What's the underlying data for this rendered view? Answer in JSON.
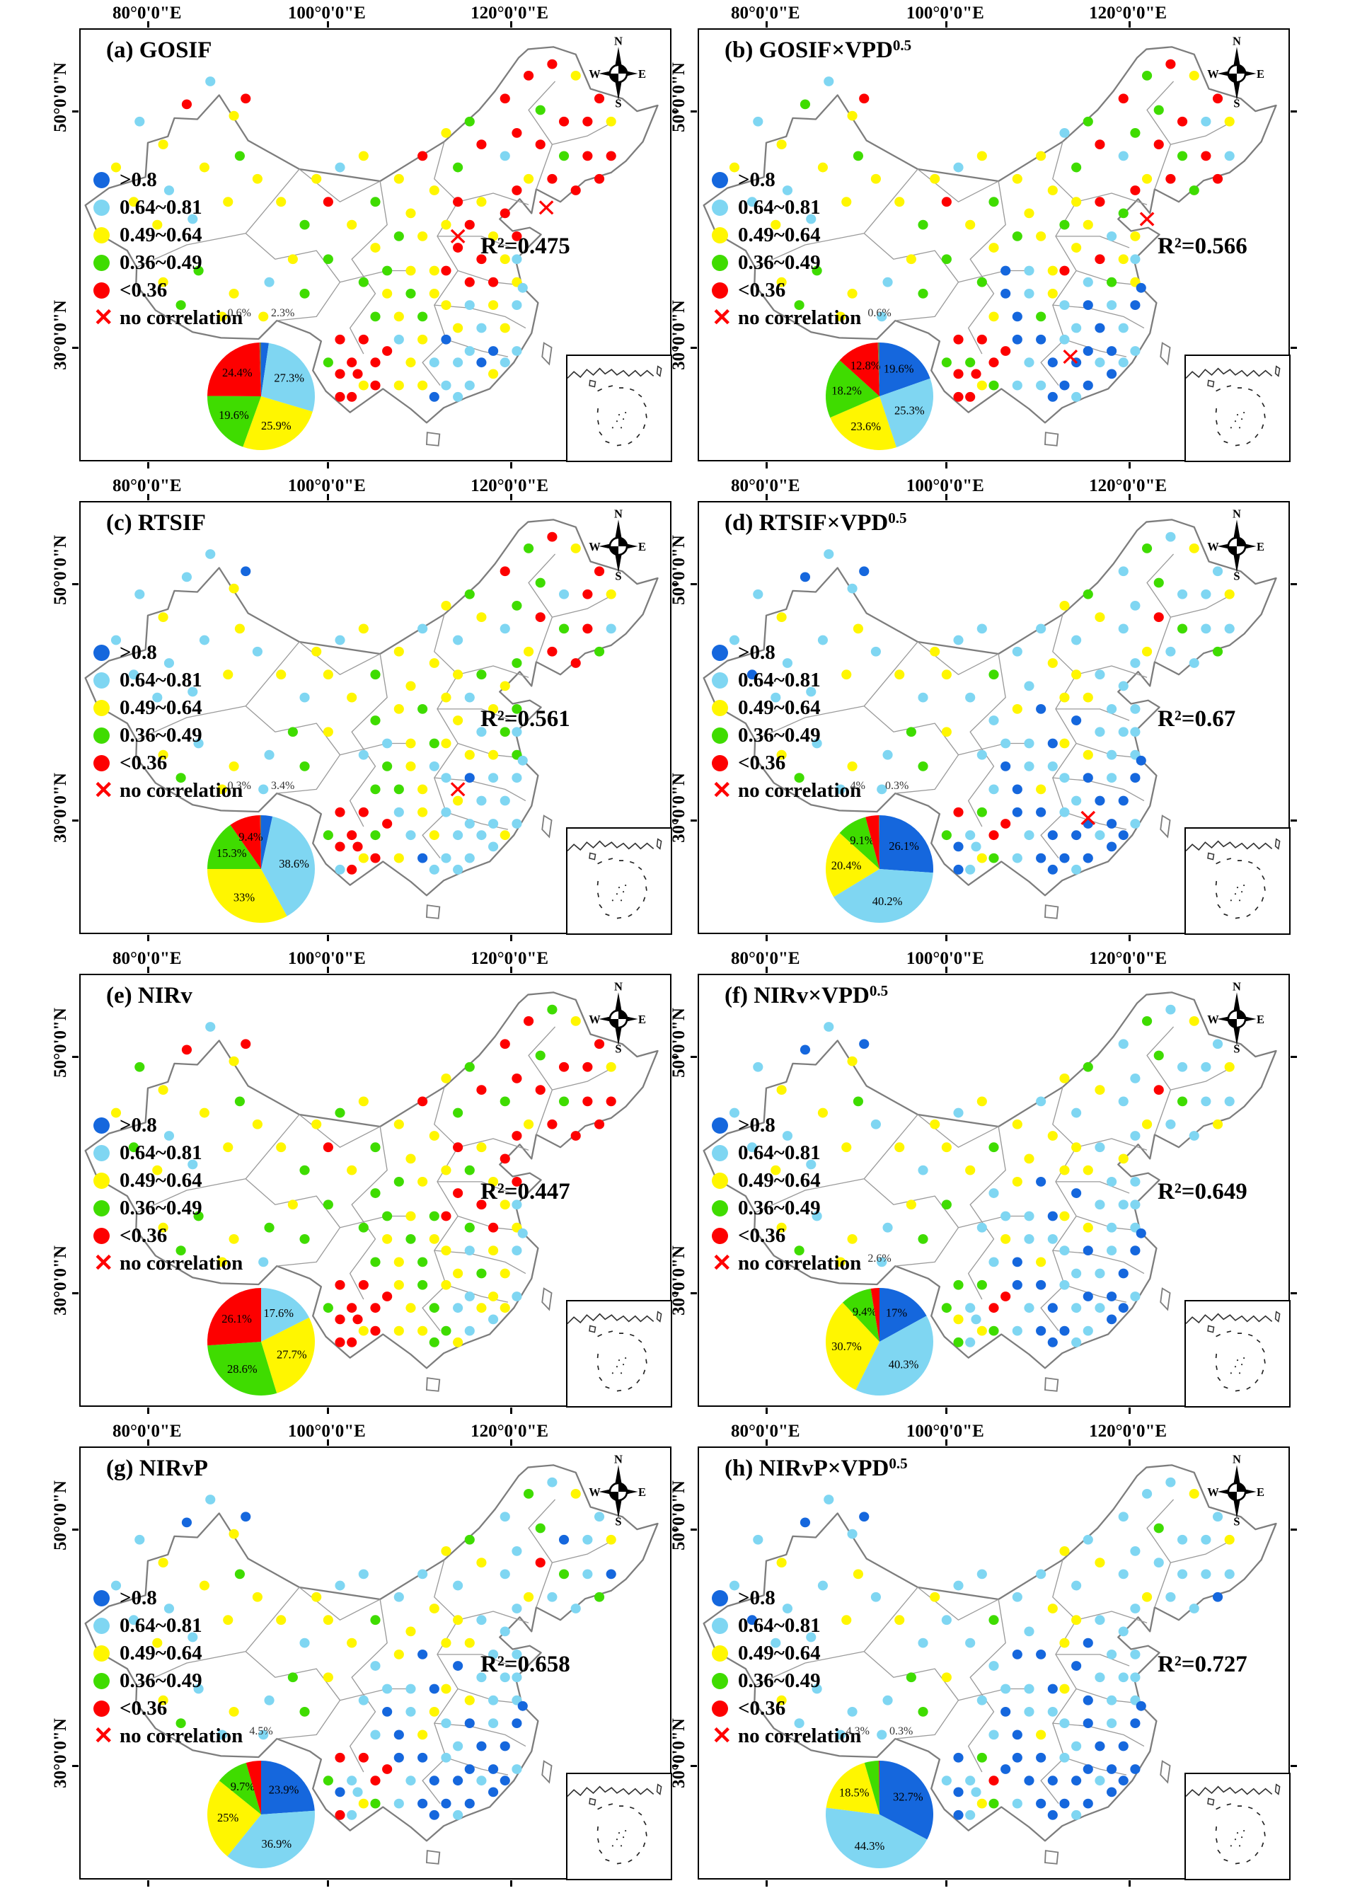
{
  "axis": {
    "top_labels": [
      "80°0'0\"E",
      "100°0'0\"E",
      "120°0'0\"E"
    ],
    "left_labels": [
      "50°0'0\"N",
      "30°0'0\"N"
    ]
  },
  "legend": {
    "items": [
      {
        "key": "B",
        "label": ">0.8"
      },
      {
        "key": "C",
        "label": "0.64~0.81"
      },
      {
        "key": "Y",
        "label": "0.49~0.64"
      },
      {
        "key": "G",
        "label": "0.36~0.49"
      },
      {
        "key": "R",
        "label": "<0.36"
      }
    ],
    "no_corr_label": "no correlation",
    "no_corr_symbol": "✕"
  },
  "colors": {
    "B": "#1567dd",
    "C": "#7fd6f2",
    "Y": "#fff600",
    "G": "#3fdc00",
    "R": "#fd0000",
    "N": "#77774a",
    "x_mark": "#ff0000",
    "outline": "#7d7d7d",
    "province": "#9a9a9a"
  },
  "compass": {
    "n": "N",
    "e": "E",
    "s": "S",
    "w": "W"
  },
  "stations": [
    [
      6,
      24
    ],
    [
      10,
      16
    ],
    [
      14,
      20
    ],
    [
      18,
      13
    ],
    [
      22,
      9
    ],
    [
      26,
      15
    ],
    [
      9,
      30
    ],
    [
      15,
      28
    ],
    [
      21,
      24
    ],
    [
      27,
      22
    ],
    [
      13,
      34
    ],
    [
      19,
      33
    ],
    [
      25,
      30
    ],
    [
      30,
      26
    ],
    [
      28,
      12
    ],
    [
      14,
      44
    ],
    [
      20,
      42
    ],
    [
      26,
      46
    ],
    [
      32,
      44
    ],
    [
      38,
      46
    ],
    [
      24,
      50
    ],
    [
      31,
      50
    ],
    [
      17,
      48
    ],
    [
      34,
      30
    ],
    [
      38,
      34
    ],
    [
      42,
      30
    ],
    [
      46,
      34
    ],
    [
      50,
      30
    ],
    [
      54,
      26
    ],
    [
      58,
      22
    ],
    [
      62,
      18
    ],
    [
      66,
      16
    ],
    [
      56,
      32
    ],
    [
      60,
      28
    ],
    [
      64,
      24
    ],
    [
      68,
      20
    ],
    [
      40,
      26
    ],
    [
      44,
      24
    ],
    [
      48,
      22
    ],
    [
      36,
      40
    ],
    [
      42,
      40
    ],
    [
      72,
      12
    ],
    [
      76,
      8
    ],
    [
      80,
      6
    ],
    [
      84,
      8
    ],
    [
      88,
      12
    ],
    [
      78,
      14
    ],
    [
      82,
      16
    ],
    [
      86,
      16
    ],
    [
      90,
      16
    ],
    [
      74,
      18
    ],
    [
      78,
      20
    ],
    [
      82,
      22
    ],
    [
      86,
      22
    ],
    [
      90,
      22
    ],
    [
      76,
      26
    ],
    [
      80,
      26
    ],
    [
      84,
      28
    ],
    [
      88,
      26
    ],
    [
      72,
      22
    ],
    [
      74,
      28
    ],
    [
      64,
      30
    ],
    [
      68,
      30
    ],
    [
      72,
      32
    ],
    [
      66,
      34
    ],
    [
      70,
      36
    ],
    [
      74,
      36
    ],
    [
      62,
      34
    ],
    [
      64,
      38
    ],
    [
      68,
      40
    ],
    [
      72,
      40
    ],
    [
      66,
      44
    ],
    [
      70,
      44
    ],
    [
      74,
      44
    ],
    [
      62,
      42
    ],
    [
      50,
      38
    ],
    [
      54,
      36
    ],
    [
      58,
      36
    ],
    [
      52,
      42
    ],
    [
      56,
      42
    ],
    [
      60,
      42
    ],
    [
      48,
      44
    ],
    [
      52,
      46
    ],
    [
      56,
      46
    ],
    [
      60,
      46
    ],
    [
      54,
      50
    ],
    [
      58,
      50
    ],
    [
      62,
      48
    ],
    [
      50,
      50
    ],
    [
      74,
      48
    ],
    [
      70,
      48
    ],
    [
      66,
      48
    ],
    [
      72,
      52
    ],
    [
      68,
      52
    ],
    [
      64,
      52
    ],
    [
      74,
      40
    ],
    [
      75,
      45
    ],
    [
      70,
      56
    ],
    [
      74,
      56
    ],
    [
      54,
      54
    ],
    [
      58,
      54
    ],
    [
      62,
      54
    ],
    [
      66,
      56
    ],
    [
      56,
      58
    ],
    [
      60,
      58
    ],
    [
      64,
      58
    ],
    [
      68,
      58
    ],
    [
      58,
      62
    ],
    [
      62,
      62
    ],
    [
      66,
      62
    ],
    [
      54,
      62
    ],
    [
      60,
      64
    ],
    [
      64,
      64
    ],
    [
      70,
      60
    ],
    [
      72,
      58
    ],
    [
      44,
      54
    ],
    [
      48,
      54
    ],
    [
      46,
      58
    ],
    [
      50,
      58
    ],
    [
      44,
      60
    ],
    [
      48,
      62
    ],
    [
      46,
      64
    ],
    [
      50,
      62
    ],
    [
      42,
      58
    ],
    [
      52,
      56
    ],
    [
      47,
      60
    ],
    [
      44,
      64
    ]
  ],
  "panels": [
    {
      "id": "a",
      "title": "(a) GOSIF",
      "title_sup": "",
      "r2": "R²=0.475",
      "pie": {
        "slices": [
          {
            "k": "B",
            "v": 2.3,
            "t": "2.3%"
          },
          {
            "k": "C",
            "v": 27.3,
            "t": "27.3%"
          },
          {
            "k": "Y",
            "v": 25.9,
            "t": "25.9%"
          },
          {
            "k": "G",
            "v": 19.6,
            "t": "19.6%"
          },
          {
            "k": "R",
            "v": 24.4,
            "t": "24.4%"
          },
          {
            "k": "N",
            "v": 0.6,
            "t": "0.6%"
          }
        ],
        "out_labels": [
          "0.6%",
          "2.3%"
        ]
      },
      "x_marks": [
        [
          79,
          31
        ],
        [
          64,
          36
        ]
      ],
      "dots": "YCYRCYYCYGYCYYRYGYCGYYGYGRYGYRYGYYGRYCYYGRRRYRGRRYRRGRRYRRRCRRYRRYRYRRYRRYRYGYGYYGYGYYGYGCYCYCYCCBCCYBCYCCBYCCYBCYCRRRRRYRRGRRR"
    },
    {
      "id": "b",
      "title": "(b) GOSIF×VPD",
      "title_sup": "0.5",
      "r2": "R²=0.566",
      "pie": {
        "slices": [
          {
            "k": "B",
            "v": 19.6,
            "t": "19.6%"
          },
          {
            "k": "C",
            "v": 25.3,
            "t": "25.3%"
          },
          {
            "k": "Y",
            "v": 23.6,
            "t": "23.6%"
          },
          {
            "k": "G",
            "v": 18.2,
            "t": "18.2%"
          },
          {
            "k": "R",
            "v": 12.8,
            "t": "12.8%"
          },
          {
            "k": "N",
            "v": 0.6,
            "t": "0.6%"
          }
        ],
        "out_labels": [
          "0.6%"
        ]
      },
      "x_marks": [
        [
          76,
          33
        ],
        [
          63,
          57
        ]
      ],
      "dots": "YCYGCYCCYGYCYYRYGYCGYCGYGRYGYYCGYYGRYCYYGRGRYRGRCYGRGRCYRGRCRYRGYCYGYRYCGYRYGYBCYGBCYBGCYBCBCBCCBBCBBCBCBBCCBBCBCBCRRGRRYRGGRRR"
    },
    {
      "id": "c",
      "title": "(c) RTSIF",
      "title_sup": "",
      "r2": "R²=0.561",
      "pie": {
        "slices": [
          {
            "k": "B",
            "v": 3.4,
            "t": "3.4%"
          },
          {
            "k": "C",
            "v": 38.6,
            "t": "38.6%"
          },
          {
            "k": "Y",
            "v": 33,
            "t": "33%"
          },
          {
            "k": "G",
            "v": 15.3,
            "t": "15.3%"
          },
          {
            "k": "R",
            "v": 9.4,
            "t": "9.4%"
          },
          {
            "k": "N",
            "v": 0.3,
            "t": "0.3%"
          }
        ],
        "out_labels": [
          "0.3%",
          "3.4%"
        ]
      },
      "x_marks": [
        [
          64,
          50
        ]
      ],
      "dots": "CCYCCYCCCYCCYCBYCYCGYCGYCYYGYCYGYYCYYCYGYRGRYRGCRYGRGRCYRRGCGYGYCYGYYCGYYGYGYGCYGCGYCGYCGCCBCCYCCCCCYCCCYCCBCCYCCCYRRRGRYRRGRRC"
    },
    {
      "id": "d",
      "title": "(d) RTSIF×VPD",
      "title_sup": "0.5",
      "r2": "R²=0.67",
      "pie": {
        "slices": [
          {
            "k": "B",
            "v": 26.1,
            "t": "26.1%"
          },
          {
            "k": "C",
            "v": 40.2,
            "t": "40.2%"
          },
          {
            "k": "Y",
            "v": 20.4,
            "t": "20.4%"
          },
          {
            "k": "G",
            "v": 9.1,
            "t": "9.1%"
          },
          {
            "k": "R",
            "v": 4,
            "t": "4%"
          },
          {
            "k": "N",
            "v": 0.3,
            "t": "0.3%"
          }
        ],
        "out_labels": [
          "4%",
          "0.3%"
        ]
      },
      "x_marks": [
        [
          66,
          55
        ]
      ],
      "dots": "CCYBCCBCCYCCYCBYCYCGCCGYCYCGCCYGCYCYYCCGYCGCYCGCCYCRGCCYCCGCCYCCYCCYBCCYCCYCYBCCBCBCCBYCCBCBBBCCBBCBBCBCBBCBBBCBCBBRGCRBYCGGRCB"
    },
    {
      "id": "e",
      "title": "(e) NIRv",
      "title_sup": "",
      "r2": "R²=0.447",
      "pie": {
        "slices": [
          {
            "k": "C",
            "v": 17.6,
            "t": "17.6%"
          },
          {
            "k": "Y",
            "v": 27.7,
            "t": "27.7%"
          },
          {
            "k": "G",
            "v": 28.6,
            "t": "28.6%"
          },
          {
            "k": "R",
            "v": 26.1,
            "t": "26.1%"
          }
        ],
        "out_labels": []
      },
      "x_marks": [],
      "dots": "YGYRCYGCYGYCYYRYGYGGYCGYGRYGYRYGYYGRYGYYGRRGYRGRRYRRGRRYRRRGRRYRGYRYRRYGRYRGGYGYGGYGYYGYGCYCYGYCCYCYGYCYGCYYGCYGYCYRRRRRYRRGRRR"
    },
    {
      "id": "f",
      "title": "(f) NIRv×VPD",
      "title_sup": "0.5",
      "r2": "R²=0.649",
      "pie": {
        "slices": [
          {
            "k": "B",
            "v": 17,
            "t": "17%"
          },
          {
            "k": "C",
            "v": 40.3,
            "t": "40.3%"
          },
          {
            "k": "Y",
            "v": 30.7,
            "t": "30.7%"
          },
          {
            "k": "G",
            "v": 9.4,
            "t": "9.4%"
          },
          {
            "k": "R",
            "v": 2.6,
            "t": "2.6%"
          }
        ],
        "out_labels": [
          "2.6%"
        ]
      },
      "x_marks": [],
      "dots": "CCYBCYCCYGYCYCBYCYCGYCGYCYYGYCYGYYCYYCYYGCGCYCGCCYCRGCCYCCYCCYCYYCCYBCCYCCYCYBCCBCYCCBYCCBCBBCCCBBCBBCBCBCCBBCCBCBBGGCRYYCGGRCG"
    },
    {
      "id": "g",
      "title": "(g) NIRvP",
      "title_sup": "",
      "r2": "R²=0.658",
      "pie": {
        "slices": [
          {
            "k": "B",
            "v": 23.9,
            "t": "23.9%"
          },
          {
            "k": "C",
            "v": 36.9,
            "t": "36.9%"
          },
          {
            "k": "Y",
            "v": 25,
            "t": "25%"
          },
          {
            "k": "G",
            "v": 9.7,
            "t": "9.7%"
          },
          {
            "k": "R",
            "v": 4.5,
            "t": "4.5%"
          }
        ],
        "out_labels": [
          "4.5%"
        ]
      },
      "x_marks": [],
      "dots": "CCYBCYCCYGYCYYBYCYCGCCGYCYYGCCYGYYCYYCCGYCGCYCGBCYCRGCBYCCGCCYCCYCCYBCCYCCYCYBCCBCBCYBYCCBCBBBCCBBCBBCBCBBCBBBCBCBBRRCRBYCGGRCR"
    },
    {
      "id": "h",
      "title": "(h) NIRvP×VPD",
      "title_sup": "0.5",
      "r2": "R²=0.727",
      "pie": {
        "slices": [
          {
            "k": "B",
            "v": 32.7,
            "t": "32.7%"
          },
          {
            "k": "C",
            "v": 44.3,
            "t": "44.3%"
          },
          {
            "k": "Y",
            "v": 18.5,
            "t": "18.5%"
          },
          {
            "k": "G",
            "v": 4.3,
            "t": "4.3%"
          },
          {
            "k": "R",
            "v": 0.3,
            "t": "0.3%"
          }
        ],
        "out_labels": [
          "4.3%",
          "0.3%"
        ]
      },
      "x_marks": [],
      "dots": "CCYBCCBCCYCCYCBYCCCGCCCYCCCGCCYCCYCYYCCGYCCCYCGCCYCCCCCYCCBCCYCCBCCYBCCBCCYCBBCCBCBCCBYCCBCBBBCCBBBBBCBBBBCBBBCBCBBBGCRBYCGCBCB"
    }
  ],
  "chart_data": [
    {
      "type": "pie",
      "title": "(a) GOSIF",
      "r2": 0.475,
      "labels": [
        ">0.8",
        "0.64~0.81",
        "0.49~0.64",
        "0.36~0.49",
        "<0.36",
        "no correlation"
      ],
      "values": [
        2.3,
        27.3,
        25.9,
        19.6,
        24.4,
        0.6
      ]
    },
    {
      "type": "pie",
      "title": "(b) GOSIF×VPD^0.5",
      "r2": 0.566,
      "labels": [
        ">0.8",
        "0.64~0.81",
        "0.49~0.64",
        "0.36~0.49",
        "<0.36",
        "no correlation"
      ],
      "values": [
        19.6,
        25.3,
        23.6,
        18.2,
        12.8,
        0.6
      ]
    },
    {
      "type": "pie",
      "title": "(c) RTSIF",
      "r2": 0.561,
      "labels": [
        ">0.8",
        "0.64~0.81",
        "0.49~0.64",
        "0.36~0.49",
        "<0.36",
        "no correlation"
      ],
      "values": [
        3.4,
        38.6,
        33,
        15.3,
        9.4,
        0.3
      ]
    },
    {
      "type": "pie",
      "title": "(d) RTSIF×VPD^0.5",
      "r2": 0.67,
      "labels": [
        ">0.8",
        "0.64~0.81",
        "0.49~0.64",
        "0.36~0.49",
        "<0.36",
        "no correlation"
      ],
      "values": [
        26.1,
        40.2,
        20.4,
        9.1,
        4,
        0.3
      ]
    },
    {
      "type": "pie",
      "title": "(e) NIRv",
      "r2": 0.447,
      "labels": [
        ">0.8",
        "0.64~0.81",
        "0.49~0.64",
        "0.36~0.49",
        "<0.36",
        "no correlation"
      ],
      "values": [
        0,
        17.6,
        27.7,
        28.6,
        26.1,
        0
      ]
    },
    {
      "type": "pie",
      "title": "(f) NIRv×VPD^0.5",
      "r2": 0.649,
      "labels": [
        ">0.8",
        "0.64~0.81",
        "0.49~0.64",
        "0.36~0.49",
        "<0.36",
        "no correlation"
      ],
      "values": [
        17,
        40.3,
        30.7,
        9.4,
        2.6,
        0
      ]
    },
    {
      "type": "pie",
      "title": "(g) NIRvP",
      "r2": 0.658,
      "labels": [
        ">0.8",
        "0.64~0.81",
        "0.49~0.64",
        "0.36~0.49",
        "<0.36",
        "no correlation"
      ],
      "values": [
        23.9,
        36.9,
        25,
        9.7,
        4.5,
        0
      ]
    },
    {
      "type": "pie",
      "title": "(h) NIRvP×VPD^0.5",
      "r2": 0.727,
      "labels": [
        ">0.8",
        "0.64~0.81",
        "0.49~0.64",
        "0.36~0.49",
        "<0.36",
        "no correlation"
      ],
      "values": [
        32.7,
        44.3,
        18.5,
        4.3,
        0.3,
        0
      ]
    }
  ]
}
